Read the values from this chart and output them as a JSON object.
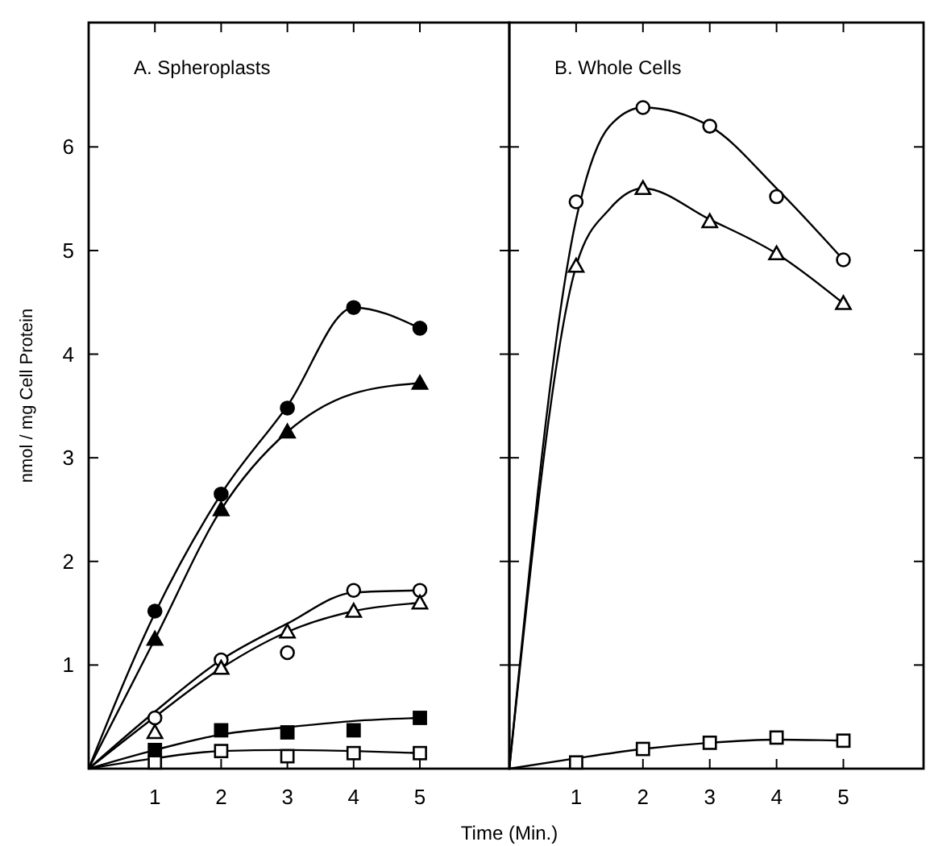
{
  "chart_data": [
    {
      "type": "scatter",
      "title": "A. Spheroplasts",
      "ylabel": "nmol / mg Cell Protein",
      "xlabel": "Time (Min.)",
      "xlim": [
        0,
        6.35
      ],
      "ylim": [
        0,
        7.2
      ],
      "xticks": [
        1,
        2,
        3,
        4,
        5
      ],
      "yticks": [
        1,
        2,
        3,
        4,
        5,
        6
      ],
      "grid": false,
      "series": [
        {
          "type": "line",
          "marker": "none",
          "color": "#000000",
          "x": [
            0,
            1,
            2,
            3,
            4,
            5
          ],
          "values": [
            0,
            1.5,
            2.65,
            3.5,
            4.45,
            4.25
          ]
        },
        {
          "type": "line",
          "marker": "none",
          "color": "#000000",
          "x": [
            0,
            1,
            2,
            3,
            4,
            5
          ],
          "values": [
            0,
            1.25,
            2.5,
            3.25,
            3.62,
            3.72
          ]
        },
        {
          "type": "line",
          "marker": "none",
          "color": "#000000",
          "x": [
            0,
            1,
            2,
            3,
            4,
            5
          ],
          "values": [
            0,
            0.55,
            1.05,
            1.4,
            1.7,
            1.72
          ]
        },
        {
          "type": "line",
          "marker": "none",
          "color": "#000000",
          "x": [
            0,
            1,
            2,
            3,
            4,
            5
          ],
          "values": [
            0,
            0.5,
            0.97,
            1.32,
            1.52,
            1.6
          ]
        },
        {
          "type": "line",
          "marker": "none",
          "color": "#000000",
          "x": [
            0,
            1,
            2,
            3,
            4,
            5
          ],
          "values": [
            0,
            0.18,
            0.33,
            0.4,
            0.46,
            0.49
          ]
        },
        {
          "type": "line",
          "marker": "none",
          "color": "#000000",
          "x": [
            0,
            1,
            2,
            3,
            4,
            5
          ],
          "values": [
            0,
            0.1,
            0.17,
            0.18,
            0.17,
            0.15
          ]
        },
        {
          "marker": "circle",
          "color": "#000000",
          "x": [
            1,
            2,
            3,
            4,
            5
          ],
          "values": [
            1.52,
            2.65,
            3.48,
            4.45,
            4.25
          ]
        },
        {
          "marker": "triangle",
          "color": "#000000",
          "x": [
            1,
            2,
            3,
            5
          ],
          "values": [
            1.25,
            2.5,
            3.25,
            3.72
          ]
        },
        {
          "marker": "circle",
          "color": "#ffffff",
          "x": [
            1,
            2,
            3,
            4,
            5
          ],
          "values": [
            0.49,
            1.05,
            1.12,
            1.72,
            1.72
          ]
        },
        {
          "marker": "triangle",
          "color": "#ffffff",
          "x": [
            1,
            2,
            3,
            4,
            5
          ],
          "values": [
            0.35,
            0.97,
            1.32,
            1.52,
            1.6
          ]
        },
        {
          "marker": "square",
          "color": "#000000",
          "x": [
            1,
            2,
            3,
            4,
            5
          ],
          "values": [
            0.18,
            0.37,
            0.35,
            0.37,
            0.49
          ]
        },
        {
          "marker": "square",
          "color": "#ffffff",
          "x": [
            1,
            2,
            3,
            4,
            5
          ],
          "values": [
            0.06,
            0.17,
            0.12,
            0.15,
            0.15
          ]
        }
      ]
    },
    {
      "type": "scatter",
      "title": "B. Whole Cells",
      "xlim": [
        0,
        6.2
      ],
      "ylim": [
        0,
        7.2
      ],
      "xticks": [
        1,
        2,
        3,
        4,
        5
      ],
      "yticks": [
        1,
        2,
        3,
        4,
        5,
        6
      ],
      "tick_labels": "x",
      "grid": false,
      "series": [
        {
          "type": "line",
          "marker": "none",
          "color": "#000000",
          "x": [
            0,
            1,
            1.5,
            2,
            3,
            4,
            5
          ],
          "values": [
            0,
            5.3,
            6.2,
            6.38,
            6.2,
            5.6,
            4.91
          ]
        },
        {
          "type": "line",
          "marker": "none",
          "color": "#000000",
          "x": [
            0,
            1,
            1.5,
            2,
            3,
            4,
            5
          ],
          "values": [
            0,
            4.85,
            5.4,
            5.6,
            5.3,
            4.97,
            4.49
          ]
        },
        {
          "type": "line",
          "marker": "none",
          "color": "#000000",
          "x": [
            0,
            1,
            2,
            3,
            4,
            5
          ],
          "values": [
            0,
            0.1,
            0.19,
            0.25,
            0.28,
            0.27
          ]
        },
        {
          "marker": "circle",
          "color": "#ffffff",
          "x": [
            1,
            2,
            3,
            4,
            5
          ],
          "values": [
            5.47,
            6.38,
            6.2,
            5.52,
            4.91
          ]
        },
        {
          "marker": "triangle",
          "color": "#ffffff",
          "x": [
            1,
            2,
            3,
            4,
            5
          ],
          "values": [
            4.85,
            5.6,
            5.28,
            4.97,
            4.49
          ]
        },
        {
          "marker": "square",
          "color": "#ffffff",
          "x": [
            1,
            2,
            3,
            4,
            5
          ],
          "values": [
            0.06,
            0.19,
            0.25,
            0.3,
            0.27
          ]
        }
      ]
    }
  ]
}
